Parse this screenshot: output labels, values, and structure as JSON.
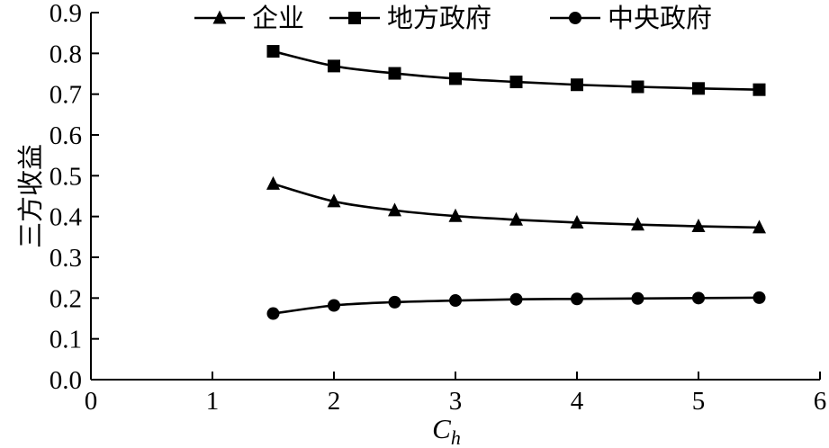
{
  "chart_data": {
    "type": "line",
    "title": "",
    "xlabel": "C",
    "xlabel_subscript": "h",
    "ylabel": "三方收益",
    "xlim": [
      0,
      6
    ],
    "ylim": [
      0,
      0.9
    ],
    "x_ticks": [
      "0",
      "1",
      "2",
      "3",
      "4",
      "5",
      "6"
    ],
    "y_ticks": [
      "0.0",
      "0.1",
      "0.2",
      "0.3",
      "0.4",
      "0.5",
      "0.6",
      "0.7",
      "0.8",
      "0.9"
    ],
    "legend_position": "top",
    "grid": false,
    "x": [
      1.5,
      2.0,
      2.5,
      3.0,
      3.5,
      4.0,
      4.5,
      5.0,
      5.5
    ],
    "series": [
      {
        "name": "企业",
        "marker": "triangle",
        "values": [
          0.48,
          0.437,
          0.415,
          0.401,
          0.392,
          0.385,
          0.38,
          0.376,
          0.373
        ]
      },
      {
        "name": "地方政府",
        "marker": "square",
        "values": [
          0.805,
          0.769,
          0.751,
          0.738,
          0.73,
          0.723,
          0.718,
          0.714,
          0.711
        ]
      },
      {
        "name": "中央政府",
        "marker": "circle",
        "values": [
          0.162,
          0.182,
          0.19,
          0.194,
          0.197,
          0.198,
          0.199,
          0.2,
          0.201
        ]
      }
    ]
  }
}
